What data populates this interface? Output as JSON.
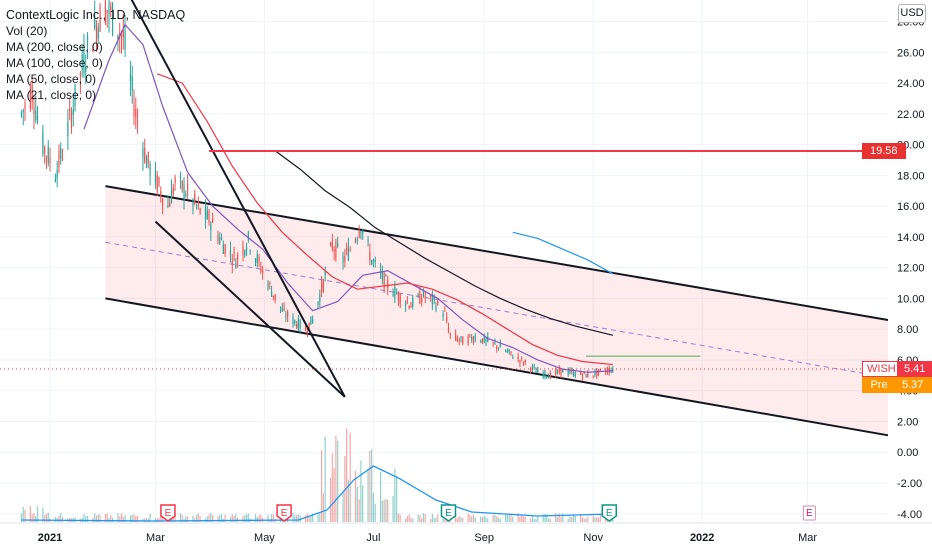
{
  "header": {
    "title": "ContextLogic Inc., 1D, NASDAQ",
    "indicators": [
      "Vol (20)",
      "MA (200, close, 0)",
      "MA (100, close, 0)",
      "MA (50, close, 0)",
      "MA (21, close, 0)"
    ]
  },
  "currency": "USD",
  "price_tags": {
    "level": {
      "value": "19.58",
      "color": "#e8302f"
    },
    "last": {
      "symbol": "WISH",
      "value": "5.41",
      "color": "#f23645"
    },
    "pre": {
      "symbol": "Pre",
      "value": "5.37",
      "color": "#ff9800"
    }
  },
  "earnings_markers": [
    {
      "label": "E",
      "date": "2021-03-08",
      "state": "reported-miss"
    },
    {
      "label": "E",
      "date": "2021-05-12",
      "state": "reported-miss"
    },
    {
      "label": "E",
      "date": "2021-08-12",
      "state": "reported-beat"
    },
    {
      "label": "E",
      "date": "2021-11-10",
      "state": "reported-beat"
    },
    {
      "label": "E",
      "date": "2022-03-02",
      "state": "upcoming"
    }
  ],
  "chart_data": {
    "type": "candlestick",
    "symbol": "WISH",
    "y_ticks": [
      "28.00",
      "26.00",
      "24.00",
      "22.00",
      "20.00",
      "18.00",
      "16.00",
      "14.00",
      "12.00",
      "10.00",
      "8.00",
      "6.00",
      "4.00",
      "2.00",
      "0.00",
      "-2.00",
      "-4.00"
    ],
    "x_ticks": [
      "2021",
      "Mar",
      "May",
      "Jul",
      "Sep",
      "Nov",
      "2022",
      "Mar"
    ],
    "ylim": [
      -4.6,
      29.4
    ],
    "xlim": [
      "2020-12-04",
      "2022-04-15"
    ],
    "price_path": [
      [
        "2020-12-16",
        22.0
      ],
      [
        "2020-12-22",
        23.5
      ],
      [
        "2020-12-28",
        20.0
      ],
      [
        "2021-01-04",
        18.2
      ],
      [
        "2021-01-08",
        19.5
      ],
      [
        "2021-01-14",
        22.5
      ],
      [
        "2021-01-20",
        25.5
      ],
      [
        "2021-01-26",
        27.5
      ],
      [
        "2021-02-01",
        29.0
      ],
      [
        "2021-02-05",
        28.2
      ],
      [
        "2021-02-11",
        27.0
      ],
      [
        "2021-02-18",
        22.0
      ],
      [
        "2021-02-24",
        19.0
      ],
      [
        "2021-03-02",
        17.5
      ],
      [
        "2021-03-08",
        16.0
      ],
      [
        "2021-03-12",
        17.5
      ],
      [
        "2021-03-18",
        17.0
      ],
      [
        "2021-03-25",
        15.8
      ],
      [
        "2021-04-01",
        15.0
      ],
      [
        "2021-04-08",
        13.5
      ],
      [
        "2021-04-15",
        12.5
      ],
      [
        "2021-04-22",
        13.8
      ],
      [
        "2021-04-29",
        12.0
      ],
      [
        "2021-05-05",
        10.5
      ],
      [
        "2021-05-12",
        9.0
      ],
      [
        "2021-05-18",
        8.5
      ],
      [
        "2021-05-24",
        8.0
      ],
      [
        "2021-05-28",
        8.6
      ],
      [
        "2021-06-03",
        11.0
      ],
      [
        "2021-06-08",
        13.5
      ],
      [
        "2021-06-14",
        12.5
      ],
      [
        "2021-06-18",
        13.2
      ],
      [
        "2021-06-24",
        14.8
      ],
      [
        "2021-06-30",
        12.5
      ],
      [
        "2021-07-08",
        11.0
      ],
      [
        "2021-07-15",
        10.2
      ],
      [
        "2021-07-22",
        9.6
      ],
      [
        "2021-07-29",
        10.2
      ],
      [
        "2021-08-04",
        9.8
      ],
      [
        "2021-08-10",
        9.0
      ],
      [
        "2021-08-13",
        7.6
      ],
      [
        "2021-08-20",
        7.2
      ],
      [
        "2021-08-27",
        7.5
      ],
      [
        "2021-09-03",
        7.2
      ],
      [
        "2021-09-10",
        6.8
      ],
      [
        "2021-09-17",
        6.3
      ],
      [
        "2021-09-24",
        5.8
      ],
      [
        "2021-10-01",
        5.2
      ],
      [
        "2021-10-08",
        5.0
      ],
      [
        "2021-10-15",
        5.3
      ],
      [
        "2021-10-22",
        5.1
      ],
      [
        "2021-10-29",
        5.0
      ],
      [
        "2021-11-05",
        5.2
      ],
      [
        "2021-11-12",
        5.41
      ]
    ],
    "moving_averages": [
      {
        "name": "MA (21, close, 0)",
        "color": "#7e57c2",
        "values": [
          [
            "2021-01-20",
            21.0
          ],
          [
            "2021-02-03",
            25.5
          ],
          [
            "2021-02-12",
            27.8
          ],
          [
            "2021-02-22",
            26.5
          ],
          [
            "2021-03-05",
            22.5
          ],
          [
            "2021-03-19",
            18.2
          ],
          [
            "2021-04-02",
            16.0
          ],
          [
            "2021-04-16",
            14.5
          ],
          [
            "2021-04-30",
            13.2
          ],
          [
            "2021-05-14",
            11.0
          ],
          [
            "2021-05-28",
            9.2
          ],
          [
            "2021-06-11",
            9.8
          ],
          [
            "2021-06-25",
            11.5
          ],
          [
            "2021-07-09",
            11.8
          ],
          [
            "2021-07-23",
            10.9
          ],
          [
            "2021-08-06",
            10.0
          ],
          [
            "2021-08-20",
            8.6
          ],
          [
            "2021-09-03",
            7.4
          ],
          [
            "2021-09-17",
            6.8
          ],
          [
            "2021-10-01",
            6.0
          ],
          [
            "2021-10-15",
            5.4
          ],
          [
            "2021-10-29",
            5.2
          ],
          [
            "2021-11-12",
            5.3
          ]
        ]
      },
      {
        "name": "MA (50, close, 0)",
        "color": "#f23645",
        "values": [
          [
            "2021-03-02",
            24.6
          ],
          [
            "2021-03-16",
            24.0
          ],
          [
            "2021-03-30",
            21.5
          ],
          [
            "2021-04-13",
            18.6
          ],
          [
            "2021-04-27",
            16.2
          ],
          [
            "2021-05-11",
            14.3
          ],
          [
            "2021-05-25",
            12.8
          ],
          [
            "2021-06-08",
            11.4
          ],
          [
            "2021-06-22",
            10.6
          ],
          [
            "2021-07-06",
            10.8
          ],
          [
            "2021-07-20",
            11.0
          ],
          [
            "2021-08-03",
            10.6
          ],
          [
            "2021-08-17",
            9.9
          ],
          [
            "2021-08-31",
            9.0
          ],
          [
            "2021-09-14",
            8.0
          ],
          [
            "2021-09-28",
            7.0
          ],
          [
            "2021-10-12",
            6.3
          ],
          [
            "2021-10-26",
            5.9
          ],
          [
            "2021-11-12",
            5.7
          ]
        ]
      },
      {
        "name": "MA (100, close, 0)",
        "color": "#131722",
        "values": [
          [
            "2021-05-07",
            19.6
          ],
          [
            "2021-05-21",
            18.4
          ],
          [
            "2021-06-04",
            17.0
          ],
          [
            "2021-06-18",
            15.9
          ],
          [
            "2021-07-02",
            14.6
          ],
          [
            "2021-07-16",
            13.6
          ],
          [
            "2021-07-30",
            12.6
          ],
          [
            "2021-08-13",
            11.7
          ],
          [
            "2021-08-27",
            10.8
          ],
          [
            "2021-09-10",
            10.0
          ],
          [
            "2021-09-24",
            9.3
          ],
          [
            "2021-10-08",
            8.7
          ],
          [
            "2021-10-22",
            8.2
          ],
          [
            "2021-11-12",
            7.6
          ]
        ]
      },
      {
        "name": "MA (200, close, 0)",
        "color": "#2196f3",
        "values": [
          [
            "2021-09-17",
            14.3
          ],
          [
            "2021-10-01",
            13.9
          ],
          [
            "2021-10-15",
            13.2
          ],
          [
            "2021-10-29",
            12.5
          ],
          [
            "2021-11-12",
            11.6
          ]
        ]
      }
    ],
    "volume_avg_color": "#2196f3",
    "drawings": [
      {
        "kind": "trendline",
        "color": "#131722",
        "from": [
          "2021-02-13",
          30.0
        ],
        "to": [
          "2021-06-15",
          3.6
        ]
      },
      {
        "kind": "trendline",
        "color": "#131722",
        "from": [
          "2021-03-01",
          15.0
        ],
        "to": [
          "2021-06-15",
          3.6
        ]
      },
      {
        "kind": "parallel_channel",
        "color": "#131722",
        "fill": "rgba(242,54,69,0.1)",
        "upper": [
          [
            "2021-02-01",
            17.3
          ],
          [
            "2022-04-15",
            8.6
          ]
        ],
        "lower": [
          [
            "2021-02-01",
            10.0
          ],
          [
            "2022-04-15",
            1.1
          ]
        ],
        "median_style": "dashed purple"
      },
      {
        "kind": "horizontal_ray",
        "color": "#f23645",
        "from": [
          "2021-03-31",
          19.58
        ]
      },
      {
        "kind": "horizontal_ray",
        "color": "#4caf50",
        "from": [
          "2021-10-28",
          6.25
        ],
        "to": [
          "2021-12-31",
          6.25
        ]
      }
    ]
  }
}
